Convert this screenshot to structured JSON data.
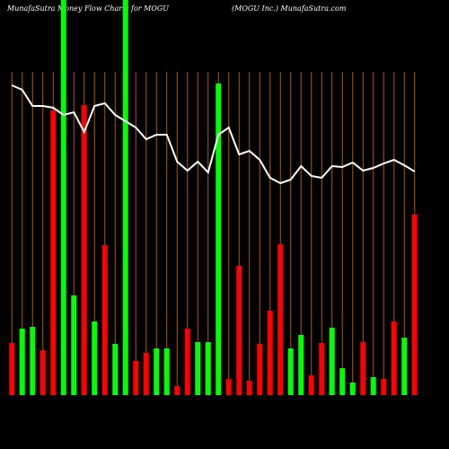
{
  "chart_data": {
    "type": "bar",
    "title": "MunafaSutra  Money Flow  Charts for MOGU",
    "subtitle": "(MOGU Inc.) MunafaSutra.com",
    "categories": [
      null,
      null,
      null,
      null,
      null,
      null,
      null,
      null,
      null,
      null,
      null,
      null,
      null,
      null,
      null,
      null,
      null,
      null,
      null,
      null,
      null,
      null,
      null,
      null,
      null,
      null,
      null,
      null,
      null,
      null,
      null,
      null,
      null,
      null,
      null,
      null,
      null,
      null,
      null,
      null
    ],
    "values": [
      58,
      74,
      76,
      50,
      317,
      440,
      111,
      323,
      82,
      167,
      57,
      440,
      38,
      47,
      52,
      52,
      10,
      74,
      59,
      59,
      347,
      18,
      144,
      16,
      57,
      94,
      168,
      52,
      67,
      22,
      58,
      75,
      30,
      14,
      59,
      20,
      18,
      82,
      64,
      201
    ],
    "bar_colors": [
      "#ff0000",
      "#00ff00",
      "#00ff00",
      "#ff0000",
      "#ff0000",
      "#00ff00",
      "#00ff00",
      "#ff0000",
      "#00ff00",
      "#ff0000",
      "#00ff00",
      "#00ff00",
      "#ff0000",
      "#ff0000",
      "#00ff00",
      "#00ff00",
      "#ff0000",
      "#ff0000",
      "#00ff00",
      "#00ff00",
      "#00ff00",
      "#ff0000",
      "#ff0000",
      "#ff0000",
      "#ff0000",
      "#ff0000",
      "#ff0000",
      "#00ff00",
      "#00ff00",
      "#ff0000",
      "#ff0000",
      "#00ff00",
      "#00ff00",
      "#00ff00",
      "#ff0000",
      "#00ff00",
      "#ff0000",
      "#ff0000",
      "#00ff00",
      "#ff0000"
    ],
    "line": {
      "color": "#ffffff",
      "values": [
        345,
        340,
        322,
        322,
        320,
        312,
        315,
        293,
        322,
        325,
        312,
        305,
        298,
        285,
        290,
        290,
        260,
        250,
        260,
        248,
        290,
        298,
        268,
        272,
        262,
        242,
        236,
        240,
        255,
        244,
        242,
        255,
        254,
        259,
        250,
        253,
        258,
        262,
        256,
        249
      ]
    },
    "ylim": [
      0,
      440
    ],
    "gridline_color": "#b05a00"
  }
}
